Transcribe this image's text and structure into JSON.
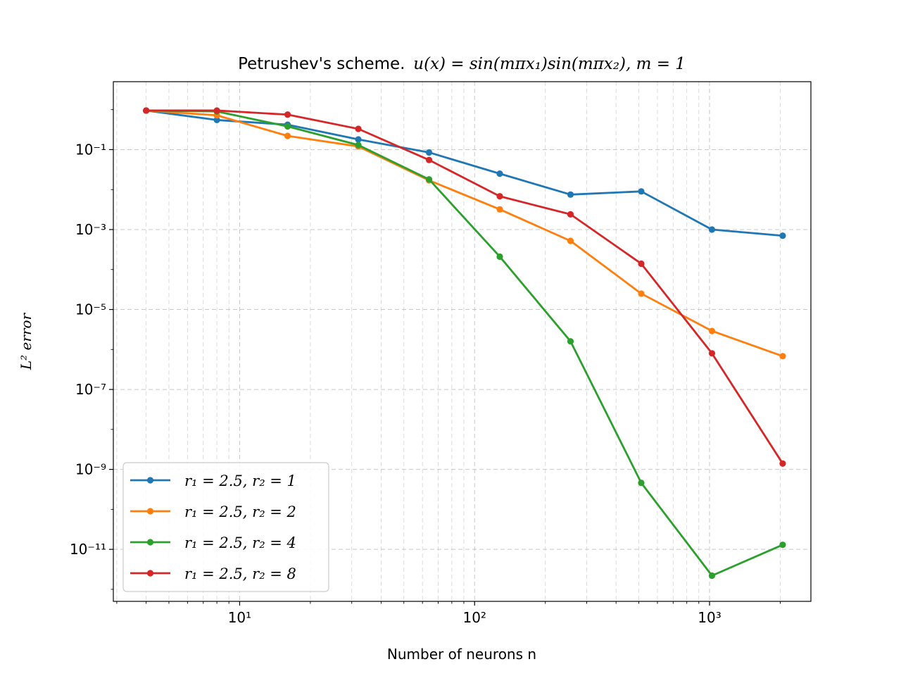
{
  "chart_data": {
    "type": "line",
    "title_text": "Petrushev's scheme.",
    "title_math": "u(x) = sin(mπx₁)sin(mπx₂), m = 1",
    "xlabel": "Number of neurons n",
    "ylabel": "L² error",
    "xscale": "log",
    "yscale": "log",
    "xlim": [
      2.9,
      2700
    ],
    "ylim": [
      5e-13,
      5
    ],
    "grid": true,
    "legend_position": "lower-left",
    "x_ticks": [
      {
        "value": 10,
        "label": "10¹"
      },
      {
        "value": 100,
        "label": "10²"
      },
      {
        "value": 1000,
        "label": "10³"
      }
    ],
    "y_ticks": [
      {
        "value": 0.1,
        "label": "10⁻¹"
      },
      {
        "value": 0.001,
        "label": "10⁻³"
      },
      {
        "value": 1e-05,
        "label": "10⁻⁵"
      },
      {
        "value": 1e-07,
        "label": "10⁻⁷"
      },
      {
        "value": 1e-09,
        "label": "10⁻⁹"
      },
      {
        "value": 1e-11,
        "label": "10⁻¹¹"
      }
    ],
    "x": [
      4,
      8,
      16,
      32,
      64,
      128,
      256,
      512,
      1024,
      2048
    ],
    "series": [
      {
        "name": "r₁ = 2.5, r₂ = 1",
        "color": "#1f77b4",
        "values": [
          0.95,
          0.55,
          0.42,
          0.18,
          0.085,
          0.025,
          0.0075,
          0.009,
          0.001,
          0.0007
        ]
      },
      {
        "name": "r₁ = 2.5, r₂ = 2",
        "color": "#ff7f0e",
        "values": [
          0.95,
          0.72,
          0.22,
          0.12,
          0.017,
          0.0032,
          0.00052,
          2.5e-05,
          2.9e-06,
          6.8e-07
        ]
      },
      {
        "name": "r₁ = 2.5, r₂ = 4",
        "color": "#2ca02c",
        "values": [
          0.95,
          0.9,
          0.38,
          0.13,
          0.018,
          0.00021,
          1.6e-06,
          4.6e-10,
          2.2e-12,
          1.3e-11
        ]
      },
      {
        "name": "r₁ = 2.5, r₂ = 8",
        "color": "#d62728",
        "values": [
          0.95,
          0.95,
          0.75,
          0.33,
          0.055,
          0.0068,
          0.0024,
          0.00014,
          8e-07,
          1.4e-09
        ]
      }
    ]
  }
}
